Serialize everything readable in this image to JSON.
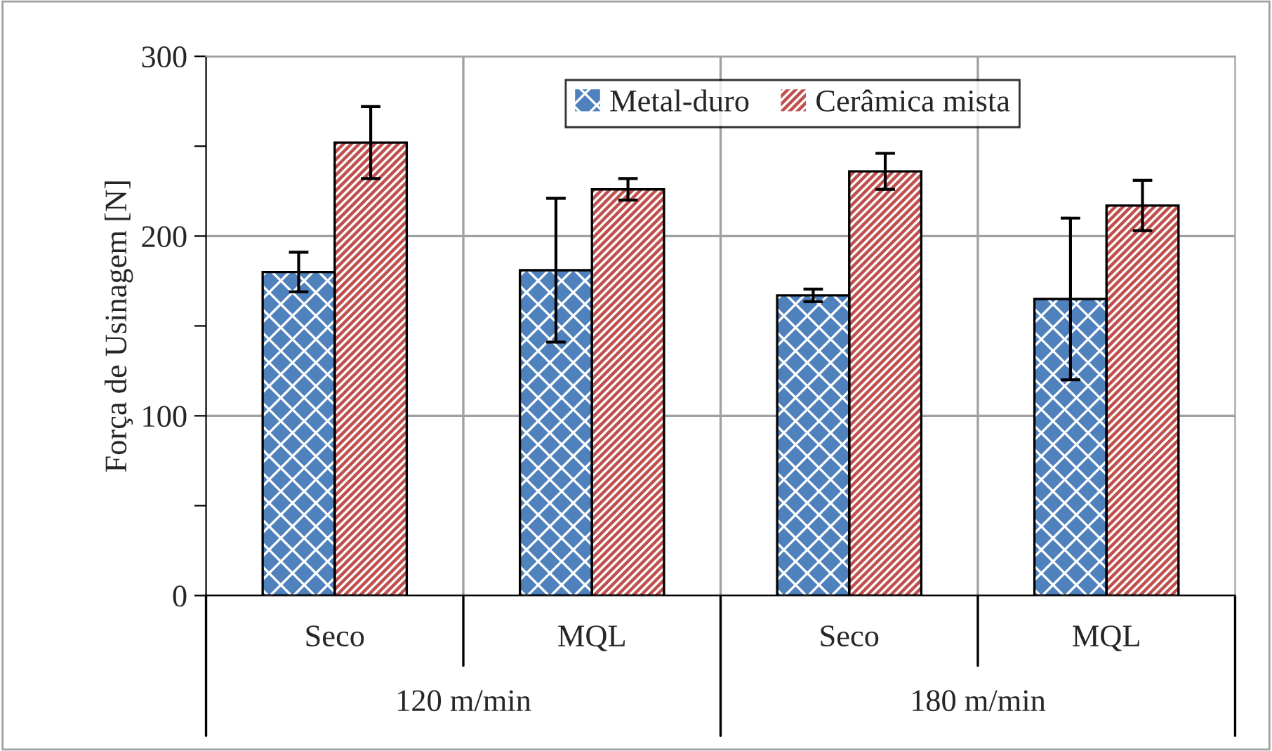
{
  "chart_data": {
    "type": "bar",
    "ylabel": "Força de Usinagem [N]",
    "categories": [
      "Seco",
      "MQL",
      "Seco",
      "MQL"
    ],
    "series": [
      {
        "name": "Metal-duro",
        "color": "#4f81bd",
        "values": [
          180,
          181,
          167,
          165
        ],
        "errors": [
          11,
          40,
          3.5,
          45
        ]
      },
      {
        "name": "Cerâmica mista",
        "color": "#c0504d",
        "values": [
          252,
          226,
          236,
          217
        ],
        "errors": [
          20,
          6,
          10,
          14
        ]
      }
    ],
    "annotations": [
      "120 m/min",
      "180 m/min"
    ],
    "ylim": [
      0,
      300
    ],
    "yticks": [
      0,
      {
        "value": 50,
        "label": null
      },
      100,
      {
        "value": 150,
        "label": null
      },
      200,
      {
        "value": 250,
        "label": null
      },
      300
    ],
    "grid": true,
    "legend": "top"
  }
}
